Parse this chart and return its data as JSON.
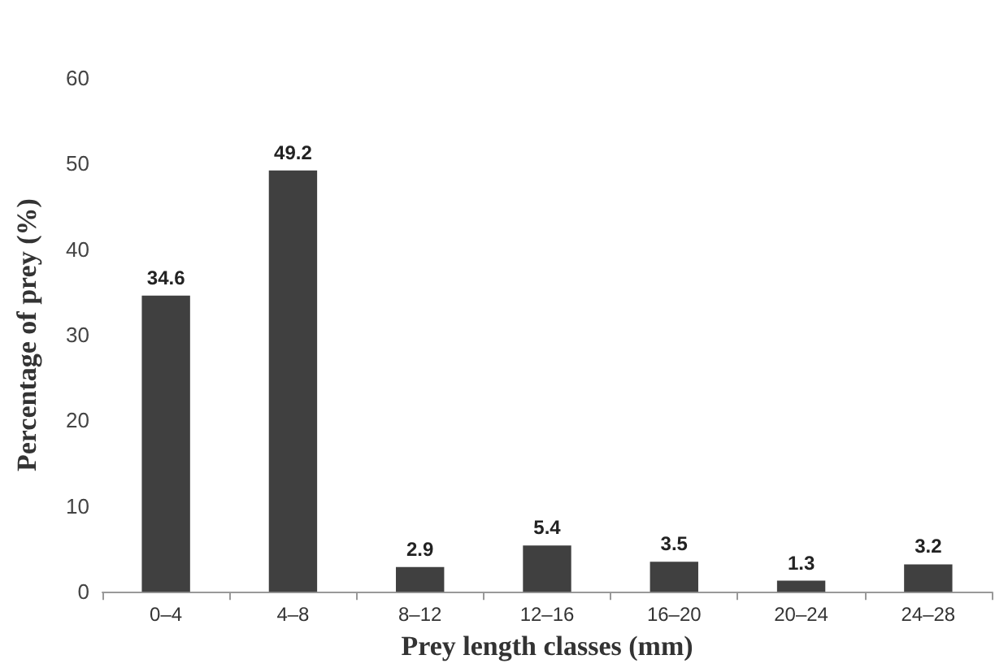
{
  "chart_data": {
    "type": "bar",
    "xlabel": "Prey length classes (mm)",
    "ylabel": "Percentage of prey (%)",
    "categories": [
      "0–4",
      "4–8",
      "8–12",
      "12–16",
      "16–20",
      "20–24",
      "24–28"
    ],
    "values": [
      34.6,
      49.2,
      2.9,
      5.4,
      3.5,
      1.3,
      3.2
    ],
    "color": "#404040",
    "ylim": [
      0,
      60
    ],
    "yticks": [
      0,
      10,
      20,
      30,
      40,
      50,
      60
    ],
    "grid": false,
    "data_labels": true
  }
}
